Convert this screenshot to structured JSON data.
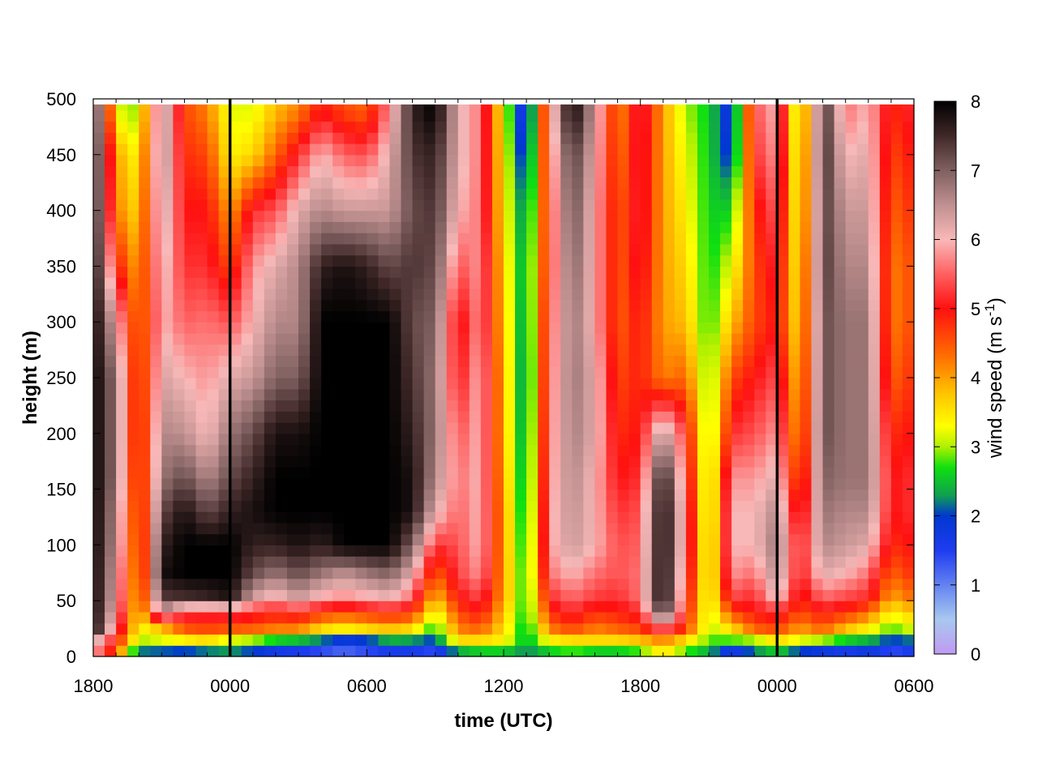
{
  "chart_data": {
    "type": "heatmap",
    "title": "",
    "xlabel": "time (UTC)",
    "ylabel": "height (m)",
    "x_ticks": [
      "1800",
      "0000",
      "0600",
      "1200",
      "1800",
      "0000",
      "0600"
    ],
    "x_range_hours": [
      0,
      36
    ],
    "y_ticks": [
      0,
      50,
      100,
      150,
      200,
      250,
      300,
      350,
      400,
      450,
      500
    ],
    "ylim": [
      0,
      500
    ],
    "marker_lines_hours": [
      6,
      30
    ],
    "colorbar": {
      "label_main": "wind speed (m s",
      "label_exp": "-1",
      "label_close": ")",
      "ticks": [
        0,
        1,
        2,
        3,
        4,
        5,
        6,
        7,
        8
      ],
      "range": [
        0,
        8
      ],
      "stops": [
        {
          "v": 0.0,
          "c": "#c09af2"
        },
        {
          "v": 0.5,
          "c": "#a8c8f0"
        },
        {
          "v": 1.5,
          "c": "#1e3cf0"
        },
        {
          "v": 2.0,
          "c": "#0038d0"
        },
        {
          "v": 2.3,
          "c": "#10a050"
        },
        {
          "v": 2.7,
          "c": "#10e010"
        },
        {
          "v": 3.0,
          "c": "#b0f000"
        },
        {
          "v": 3.3,
          "c": "#ffff00"
        },
        {
          "v": 3.8,
          "c": "#ffc000"
        },
        {
          "v": 4.3,
          "c": "#ff7000"
        },
        {
          "v": 5.0,
          "c": "#ff1010"
        },
        {
          "v": 5.5,
          "c": "#ff6060"
        },
        {
          "v": 6.0,
          "c": "#f8b8b8"
        },
        {
          "v": 6.5,
          "c": "#c09090"
        },
        {
          "v": 7.0,
          "c": "#806060"
        },
        {
          "v": 7.5,
          "c": "#402828"
        },
        {
          "v": 8.0,
          "c": "#000000"
        }
      ]
    },
    "grid_heights_m": [
      5,
      15,
      25,
      40,
      55,
      75,
      100,
      130,
      160,
      200,
      250,
      300,
      350,
      400,
      450,
      490
    ],
    "columns": [
      {
        "t": 0.0,
        "p": [
          6.0,
          6.5,
          8,
          8,
          8,
          8,
          8,
          8,
          8,
          8,
          8,
          8,
          8,
          8,
          8,
          8
        ]
      },
      {
        "t": 1.0,
        "p": [
          4.5,
          5.0,
          5.5,
          6.0,
          6.2,
          6.3,
          6.5,
          6.6,
          6.8,
          6.8,
          6.8,
          6.2,
          5.0,
          4.2,
          4.0,
          3.2
        ]
      },
      {
        "t": 2.0,
        "p": [
          2.2,
          3.0,
          3.3,
          3.4,
          3.5,
          3.6,
          3.7,
          3.8,
          3.9,
          4.0,
          4.0,
          4.0,
          3.9,
          3.6,
          3.3,
          2.9
        ]
      },
      {
        "t": 3.0,
        "p": [
          2.1,
          3.2,
          3.8,
          6.5,
          7.4,
          7.8,
          7.6,
          7.2,
          6.8,
          6.6,
          6.3,
          6.0,
          6.2,
          6.5,
          6.8,
          6.8
        ]
      },
      {
        "t": 4.0,
        "p": [
          2.0,
          3.4,
          4.5,
          5.4,
          7.5,
          8,
          8,
          7.8,
          7.2,
          6.5,
          6.0,
          5.5,
          5.2,
          5.0,
          4.8,
          4.6
        ]
      },
      {
        "t": 5.0,
        "p": [
          2.2,
          3.6,
          4.6,
          5.3,
          7.6,
          8,
          8,
          7.2,
          6.6,
          6.0,
          5.8,
          5.6,
          5.2,
          5.0,
          4.6,
          4.2
        ]
      },
      {
        "t": 6.0,
        "p": [
          2.3,
          3.2,
          4.5,
          5.4,
          7.8,
          8,
          8,
          7.6,
          7.2,
          6.8,
          6.2,
          5.4,
          4.6,
          4.0,
          3.4,
          3.2
        ]
      },
      {
        "t": 7.0,
        "p": [
          2.0,
          3.0,
          4.4,
          5.2,
          6.4,
          7.2,
          7.6,
          7.8,
          7.6,
          7.2,
          6.4,
          6.0,
          5.8,
          5.2,
          3.6,
          3.2
        ]
      },
      {
        "t": 8.0,
        "p": [
          1.7,
          2.6,
          4.2,
          5.0,
          6.0,
          6.8,
          7.6,
          8,
          8,
          7.8,
          7.0,
          6.6,
          6.2,
          5.4,
          4.4,
          3.8
        ]
      },
      {
        "t": 9.0,
        "p": [
          1.6,
          2.5,
          4.2,
          5.2,
          6.5,
          7.2,
          7.8,
          8,
          8,
          7.8,
          7.0,
          6.6,
          6.6,
          6.2,
          5.2,
          4.2
        ]
      },
      {
        "t": 10.0,
        "p": [
          1.4,
          2.2,
          3.6,
          4.8,
          6.0,
          6.8,
          7.6,
          8,
          8,
          8,
          8,
          8,
          7.6,
          6.6,
          6.0,
          5.0
        ]
      },
      {
        "t": 11.0,
        "p": [
          1.2,
          1.8,
          3.4,
          4.6,
          5.8,
          6.5,
          8,
          8,
          8,
          8,
          8,
          8,
          7.8,
          6.4,
          5.5,
          4.6
        ]
      },
      {
        "t": 12.0,
        "p": [
          1.4,
          2.0,
          3.6,
          4.8,
          6.0,
          6.8,
          8,
          8,
          8,
          8,
          8,
          8,
          7.6,
          6.4,
          5.4,
          4.4
        ]
      },
      {
        "t": 13.0,
        "p": [
          1.6,
          2.4,
          3.8,
          5.0,
          6.2,
          7.0,
          8,
          8,
          8,
          8,
          8,
          8,
          7.2,
          6.4,
          6.2,
          5.8
        ]
      },
      {
        "t": 14.0,
        "p": [
          1.6,
          2.3,
          3.6,
          4.8,
          5.6,
          6.2,
          7.0,
          7.8,
          7.8,
          7.6,
          7.4,
          7.2,
          7.4,
          7.2,
          7.4,
          7.6
        ]
      },
      {
        "t": 15.0,
        "p": [
          1.4,
          2.0,
          2.6,
          3.2,
          3.8,
          4.4,
          5.2,
          6.2,
          6.6,
          6.8,
          6.8,
          7.0,
          7.2,
          7.4,
          7.6,
          8
        ]
      },
      {
        "t": 16.0,
        "p": [
          2.4,
          3.6,
          4.2,
          4.6,
          5.0,
          5.3,
          5.4,
          5.5,
          5.6,
          5.4,
          5.0,
          4.8,
          5.4,
          6.0,
          6.2,
          6.2
        ]
      },
      {
        "t": 17.0,
        "p": [
          2.6,
          3.6,
          4.4,
          5.0,
          5.4,
          5.8,
          6.0,
          6.0,
          6.0,
          6.0,
          6.0,
          5.8,
          5.8,
          5.6,
          5.6,
          5.6
        ]
      },
      {
        "t": 18.0,
        "p": [
          2.6,
          3.4,
          3.6,
          3.8,
          4.0,
          4.0,
          4.0,
          4.0,
          3.9,
          3.8,
          3.8,
          3.7,
          3.6,
          3.5,
          3.4,
          3.3
        ]
      },
      {
        "t": 19.0,
        "p": [
          2.2,
          2.4,
          2.4,
          2.5,
          2.5,
          2.5,
          2.4,
          2.3,
          2.2,
          2.1,
          2.0,
          2.1,
          2.2,
          2.0,
          1.6,
          1.2
        ]
      },
      {
        "t": 20.0,
        "p": [
          2.6,
          3.4,
          4.2,
          4.8,
          5.2,
          5.6,
          5.8,
          5.8,
          5.7,
          5.6,
          5.5,
          5.4,
          5.2,
          5.2,
          5.4,
          5.6
        ]
      },
      {
        "t": 21.0,
        "p": [
          2.8,
          3.6,
          4.6,
          5.2,
          5.6,
          6.0,
          6.4,
          6.5,
          6.6,
          6.7,
          6.8,
          6.8,
          7.0,
          7.2,
          7.4,
          8
        ]
      },
      {
        "t": 22.0,
        "p": [
          2.6,
          3.6,
          4.2,
          4.8,
          5.3,
          5.6,
          6.0,
          6.0,
          6.0,
          6.2,
          6.2,
          6.0,
          6.0,
          6.0,
          6.2,
          6.4
        ]
      },
      {
        "t": 23.0,
        "p": [
          2.6,
          3.6,
          4.4,
          4.9,
          5.2,
          5.4,
          5.4,
          5.2,
          5.0,
          4.8,
          4.6,
          4.4,
          4.4,
          4.4,
          4.2,
          4.0
        ]
      },
      {
        "t": 24.0,
        "p": [
          2.8,
          3.8,
          4.6,
          5.2,
          5.6,
          5.6,
          5.5,
          5.4,
          5.2,
          5.0,
          4.9,
          5.0,
          5.2,
          5.3,
          5.3,
          5.4
        ]
      },
      {
        "t": 25.0,
        "p": [
          3.6,
          4.2,
          5.6,
          7.6,
          8,
          8,
          8,
          8,
          7.8,
          6.6,
          4.2,
          4.0,
          4.0,
          4.0,
          4.0,
          4.0
        ]
      },
      {
        "t": 26.0,
        "p": [
          2.8,
          3.6,
          4.6,
          5.0,
          5.2,
          5.4,
          5.6,
          5.6,
          5.4,
          5.2,
          4.4,
          3.8,
          3.6,
          3.4,
          3.2,
          3.0
        ]
      },
      {
        "t": 27.0,
        "p": [
          2.4,
          2.8,
          3.0,
          3.0,
          3.0,
          3.0,
          2.9,
          2.8,
          2.8,
          2.7,
          2.7,
          2.6,
          2.6,
          2.6,
          2.6,
          2.6
        ]
      },
      {
        "t": 28.0,
        "p": [
          1.6,
          2.8,
          3.6,
          4.6,
          5.4,
          5.8,
          6.0,
          6.0,
          5.8,
          5.2,
          4.6,
          3.8,
          3.2,
          2.6,
          1.8,
          1.6
        ]
      },
      {
        "t": 29.0,
        "p": [
          2.2,
          3.0,
          4.4,
          5.0,
          5.2,
          5.6,
          6.0,
          6.0,
          5.8,
          5.4,
          5.0,
          4.6,
          4.6,
          4.8,
          5.2,
          5.4
        ]
      },
      {
        "t": 30.0,
        "p": [
          2.6,
          3.6,
          4.6,
          5.2,
          6.2,
          6.6,
          6.8,
          6.6,
          6.2,
          5.8,
          5.4,
          5.0,
          5.2,
          5.5,
          5.8,
          6.0
        ]
      },
      {
        "t": 31.0,
        "p": [
          2.0,
          3.2,
          4.0,
          4.6,
          4.8,
          5.0,
          5.0,
          4.6,
          4.2,
          3.8,
          3.6,
          3.4,
          3.2,
          3.0,
          2.8,
          2.6
        ]
      },
      {
        "t": 32.0,
        "p": [
          1.8,
          3.0,
          4.4,
          5.0,
          5.6,
          6.2,
          6.6,
          6.8,
          7.0,
          7.2,
          7.2,
          7.2,
          7.4,
          7.4,
          7.6,
          7.6
        ]
      },
      {
        "t": 33.0,
        "p": [
          1.6,
          2.6,
          3.8,
          4.8,
          5.4,
          6.0,
          6.4,
          6.6,
          6.8,
          6.8,
          6.8,
          6.8,
          6.6,
          6.4,
          6.0,
          5.6
        ]
      },
      {
        "t": 34.0,
        "p": [
          1.8,
          2.4,
          3.4,
          4.4,
          5.2,
          5.6,
          6.2,
          6.6,
          6.8,
          6.8,
          6.8,
          6.8,
          6.6,
          6.4,
          6.2,
          6.0
        ]
      },
      {
        "t": 35.0,
        "p": [
          1.4,
          2.0,
          2.8,
          3.4,
          4.0,
          4.4,
          4.8,
          5.0,
          5.0,
          4.8,
          4.4,
          4.2,
          4.2,
          4.4,
          4.6,
          4.8
        ]
      },
      {
        "t": 36.0,
        "p": [
          1.6,
          2.2,
          3.2,
          3.8,
          4.4,
          4.8,
          5.0,
          5.2,
          5.2,
          5.0,
          4.8,
          4.6,
          4.6,
          4.8,
          5.0,
          5.2
        ]
      }
    ]
  }
}
